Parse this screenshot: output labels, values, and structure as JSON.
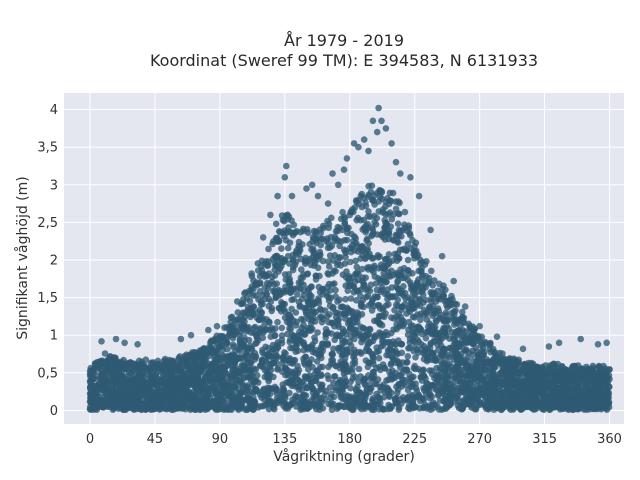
{
  "chart_data": {
    "type": "scatter",
    "title": "År 1979 - 2019",
    "subtitle": "Koordinat (Sweref 99 TM): E 394583, N 6131933",
    "xlabel": "Vågriktning (grader)",
    "ylabel": "Signifikant våghöjd (m)",
    "xlim": [
      -18,
      370
    ],
    "ylim": [
      -0.18,
      4.22
    ],
    "x_ticks": [
      0,
      45,
      90,
      135,
      180,
      225,
      270,
      315,
      360
    ],
    "x_tick_labels": [
      "0",
      "45",
      "90",
      "135",
      "180",
      "225",
      "270",
      "315",
      "360"
    ],
    "y_ticks": [
      0,
      0.5,
      1,
      1.5,
      2,
      2.5,
      3,
      3.5,
      4
    ],
    "y_tick_labels": [
      "0",
      "0,5",
      "1",
      "1,5",
      "2",
      "2,5",
      "3",
      "3,5",
      "4"
    ],
    "grid": true,
    "point_color": "#2f5a73",
    "plot_background": "#e5e7f0",
    "envelope": {
      "x": [
        0,
        10,
        20,
        30,
        45,
        60,
        75,
        90,
        100,
        110,
        120,
        130,
        135,
        140,
        150,
        160,
        170,
        180,
        190,
        200,
        210,
        220,
        225,
        230,
        240,
        250,
        260,
        270,
        280,
        290,
        300,
        315,
        330,
        345,
        360
      ],
      "y": [
        0.55,
        0.75,
        0.7,
        0.65,
        0.65,
        0.7,
        0.8,
        1.0,
        1.3,
        1.7,
        2.1,
        2.5,
        2.7,
        2.55,
        2.45,
        2.45,
        2.6,
        2.75,
        2.95,
        3.0,
        2.9,
        2.6,
        2.3,
        2.05,
        1.8,
        1.55,
        1.25,
        1.0,
        0.85,
        0.7,
        0.65,
        0.6,
        0.6,
        0.6,
        0.55
      ]
    },
    "outliers": [
      {
        "x": 8,
        "y": 0.92
      },
      {
        "x": 18,
        "y": 0.95
      },
      {
        "x": 24,
        "y": 0.9
      },
      {
        "x": 33,
        "y": 0.88
      },
      {
        "x": 63,
        "y": 0.95
      },
      {
        "x": 70,
        "y": 1.0
      },
      {
        "x": 82,
        "y": 1.07
      },
      {
        "x": 88,
        "y": 1.12
      },
      {
        "x": 102,
        "y": 1.45
      },
      {
        "x": 112,
        "y": 1.82
      },
      {
        "x": 120,
        "y": 2.3
      },
      {
        "x": 125,
        "y": 2.6
      },
      {
        "x": 130,
        "y": 2.85
      },
      {
        "x": 135,
        "y": 3.1
      },
      {
        "x": 136,
        "y": 3.25
      },
      {
        "x": 140,
        "y": 2.85
      },
      {
        "x": 150,
        "y": 2.95
      },
      {
        "x": 154,
        "y": 3.0
      },
      {
        "x": 158,
        "y": 2.85
      },
      {
        "x": 165,
        "y": 2.75
      },
      {
        "x": 168,
        "y": 3.15
      },
      {
        "x": 172,
        "y": 3.0
      },
      {
        "x": 176,
        "y": 3.2
      },
      {
        "x": 178,
        "y": 3.35
      },
      {
        "x": 183,
        "y": 3.55
      },
      {
        "x": 186,
        "y": 3.5
      },
      {
        "x": 190,
        "y": 3.6
      },
      {
        "x": 193,
        "y": 3.45
      },
      {
        "x": 196,
        "y": 3.85
      },
      {
        "x": 199,
        "y": 3.7
      },
      {
        "x": 200,
        "y": 4.02
      },
      {
        "x": 202,
        "y": 3.85
      },
      {
        "x": 205,
        "y": 3.75
      },
      {
        "x": 209,
        "y": 3.55
      },
      {
        "x": 212,
        "y": 3.3
      },
      {
        "x": 215,
        "y": 3.15
      },
      {
        "x": 222,
        "y": 3.1
      },
      {
        "x": 228,
        "y": 2.85
      },
      {
        "x": 236,
        "y": 2.4
      },
      {
        "x": 244,
        "y": 2.05
      },
      {
        "x": 252,
        "y": 1.72
      },
      {
        "x": 260,
        "y": 1.38
      },
      {
        "x": 270,
        "y": 1.12
      },
      {
        "x": 282,
        "y": 0.98
      },
      {
        "x": 300,
        "y": 0.82
      },
      {
        "x": 318,
        "y": 0.85
      },
      {
        "x": 325,
        "y": 0.9
      },
      {
        "x": 340,
        "y": 0.95
      },
      {
        "x": 352,
        "y": 0.88
      },
      {
        "x": 358,
        "y": 0.9
      }
    ]
  }
}
